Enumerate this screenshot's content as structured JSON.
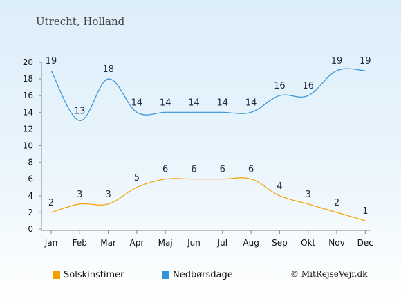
{
  "title": "Utrecht, Holland",
  "copyright": "© MitRejseVejr.dk",
  "chart_data": {
    "type": "line",
    "categories": [
      "Jan",
      "Feb",
      "Mar",
      "Apr",
      "Maj",
      "Jun",
      "Jul",
      "Aug",
      "Sep",
      "Okt",
      "Nov",
      "Dec"
    ],
    "yticks": [
      0,
      2,
      4,
      6,
      8,
      10,
      12,
      14,
      16,
      18,
      20
    ],
    "ylim": [
      0,
      20
    ],
    "grid": false,
    "legend_position": "bottom-left",
    "series": [
      {
        "name": "Solskinstimer",
        "color": "#f5a000",
        "values": [
          2,
          3,
          3,
          5,
          6,
          6,
          6,
          6,
          4,
          3,
          2,
          1
        ]
      },
      {
        "name": "Nedbørsdage",
        "color": "#3592d6",
        "values": [
          19,
          13,
          18,
          14,
          14,
          14,
          14,
          14,
          16,
          16,
          19,
          19
        ]
      }
    ]
  }
}
